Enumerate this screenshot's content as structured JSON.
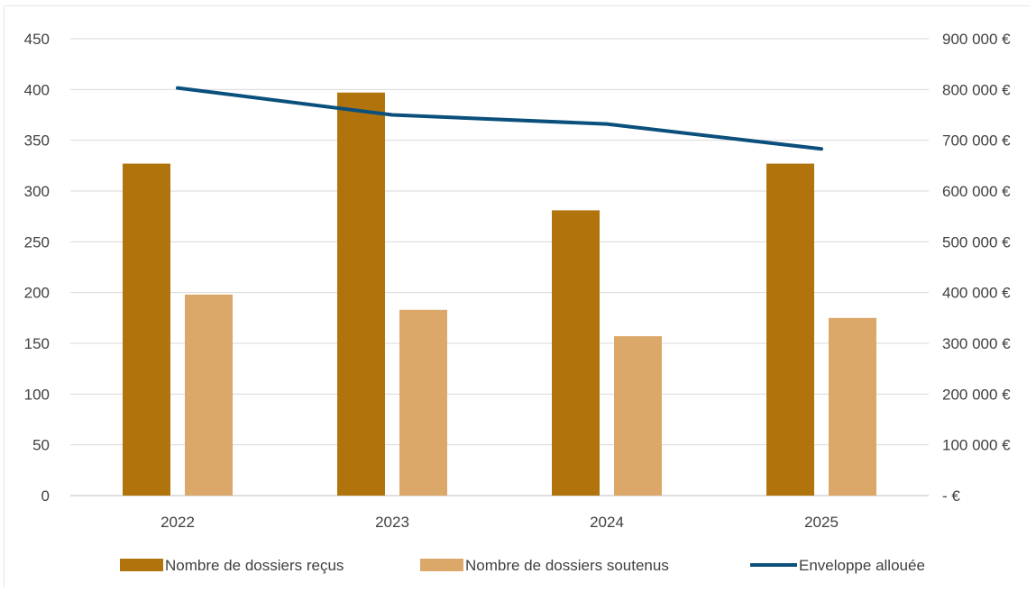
{
  "chart_data": {
    "type": "bar",
    "categories": [
      "2022",
      "2023",
      "2024",
      "2025"
    ],
    "series": [
      {
        "name": "Nombre de dossiers reçus",
        "chart_type": "bar",
        "axis": "left",
        "color": "#b1740d",
        "values": [
          327,
          397,
          281,
          327
        ]
      },
      {
        "name": "Nombre de dossiers soutenus",
        "chart_type": "bar",
        "axis": "left",
        "color": "#dba86a",
        "values": [
          198,
          183,
          157,
          175
        ]
      },
      {
        "name": "Enveloppe allouée",
        "chart_type": "line",
        "axis": "right",
        "color": "#0b4f7c",
        "values": [
          803000,
          750000,
          732000,
          683000
        ]
      }
    ],
    "y_left": {
      "lim": [
        0,
        450
      ],
      "ticks": [
        0,
        50,
        100,
        150,
        200,
        250,
        300,
        350,
        400,
        450
      ],
      "tick_labels": [
        "0",
        "50",
        "100",
        "150",
        "200",
        "250",
        "300",
        "350",
        "400",
        "450"
      ]
    },
    "y_right": {
      "lim": [
        0,
        900000
      ],
      "ticks": [
        0,
        100000,
        200000,
        300000,
        400000,
        500000,
        600000,
        700000,
        800000,
        900000
      ],
      "tick_labels": [
        "-  €",
        "100 000 €",
        "200 000 €",
        "300 000 €",
        "400 000 €",
        "500 000 €",
        "600 000 €",
        "700 000 €",
        "800 000 €",
        "900 000 €"
      ]
    },
    "grid": true,
    "legend_position": "bottom"
  }
}
